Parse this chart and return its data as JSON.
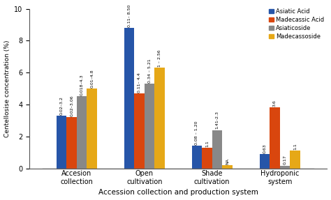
{
  "categories": [
    "Accesion\ncollection",
    "Open\ncultivation",
    "Shade\ncultivation",
    "Hydroponic\nsystem"
  ],
  "series": {
    "Asiatic Acid": [
      3.3,
      8.8,
      1.4,
      0.9
    ],
    "Madecassic Acid": [
      3.2,
      4.7,
      1.3,
      3.8
    ],
    "Asiaticoside": [
      4.5,
      5.3,
      2.4,
      0.17
    ],
    "Madecassoside": [
      5.0,
      6.3,
      0.2,
      1.1
    ]
  },
  "colors": {
    "Asiatic Acid": "#2655a8",
    "Madecassic Acid": "#d9460e",
    "Asiaticoside": "#888888",
    "Madecassoside": "#e6a817"
  },
  "annotations": {
    "Accesion\ncollection": {
      "Asiatic Acid": "0.02–3.2",
      "Madecassic Acid": "0.02–3.06",
      "Asiaticoside": "0.018–4.3",
      "Madecassoside": "0.01–4.8"
    },
    "Open\ncultivation": {
      "Asiatic Acid": "0.11– 8.50",
      "Madecassic Acid": "0.11– 4.4",
      "Asiaticoside": "0.34 – 5.21",
      "Madecassoside": "1 – 2.56"
    },
    "Shade\ncultivation": {
      "Asiatic Acid": "0.08 – 1.20",
      "Madecassic Acid": "1.1",
      "Asiaticoside": "1.41-2.3",
      "Madecassoside": "NA"
    },
    "Hydroponic\nsystem": {
      "Asiatic Acid": "0.63",
      "Madecassic Acid": "3.6",
      "Asiaticoside": "0.17",
      "Madecassoside": "1.1"
    }
  },
  "ylabel": "Centellosise concentration (%)",
  "xlabel": "Accession collection and production system",
  "ylim": [
    0,
    10
  ],
  "yticks": [
    0,
    2,
    4,
    6,
    8,
    10
  ],
  "bar_width": 0.15,
  "legend_labels": [
    "Asiatic Acid",
    "Madecassic Acid",
    "Asiaticoside",
    "Madecassoside"
  ],
  "bg_color": "#ffffff"
}
